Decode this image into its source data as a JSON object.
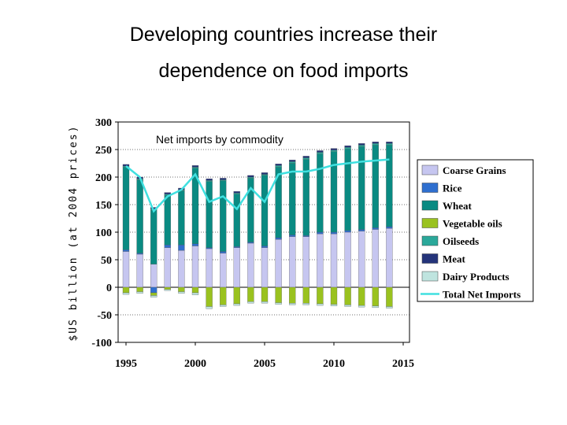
{
  "title_line1": "Developing countries increase their",
  "title_line2": "dependence on food imports",
  "chart_data": {
    "type": "bar",
    "stacked": true,
    "subtitle": "Net imports by commodity",
    "ylabel": "$US billion (at 2004 prices)",
    "xlabel": "",
    "ylim": [
      -100,
      300
    ],
    "yticks": [
      300,
      250,
      200,
      150,
      100,
      50,
      0,
      -50,
      -100
    ],
    "xticks": [
      "1995",
      "2000",
      "2005",
      "2010",
      "2015"
    ],
    "grid": true,
    "legend_position": "right",
    "categories": [
      1995,
      1996,
      1997,
      1998,
      1999,
      2000,
      2001,
      2002,
      2003,
      2004,
      2005,
      2006,
      2007,
      2008,
      2009,
      2010,
      2011,
      2012,
      2013,
      2014
    ],
    "series": [
      {
        "name": "Coarse Grains",
        "color": "#c6c6f0",
        "values": [
          65,
          60,
          42,
          72,
          67,
          75,
          70,
          62,
          72,
          80,
          72,
          87,
          92,
          92,
          97,
          97,
          100,
          102,
          105,
          107
        ]
      },
      {
        "name": "Rice",
        "color": "#2f6fcf",
        "values": [
          3,
          2,
          -10,
          5,
          10,
          4,
          2,
          3,
          2,
          2,
          3,
          3,
          3,
          2,
          3,
          3,
          3,
          3,
          3,
          3
        ]
      },
      {
        "name": "Wheat",
        "color": "#0a8a82",
        "values": [
          150,
          133,
          98,
          90,
          98,
          137,
          120,
          128,
          95,
          116,
          128,
          128,
          130,
          138,
          142,
          146,
          148,
          150,
          150,
          148
        ]
      },
      {
        "name": "Vegetable oils",
        "color": "#9ac21f",
        "values": [
          -10,
          -8,
          -5,
          -4,
          -8,
          -10,
          -35,
          -32,
          -30,
          -26,
          -26,
          -28,
          -29,
          -29,
          -30,
          -31,
          -32,
          -33,
          -34,
          -35
        ]
      },
      {
        "name": "Oilseeds",
        "color": "#2aa89a",
        "values": [
          2,
          2,
          2,
          2,
          2,
          2,
          2,
          2,
          2,
          2,
          2,
          3,
          3,
          3,
          3,
          3,
          3,
          3,
          3,
          3
        ]
      },
      {
        "name": "Meat",
        "color": "#24347a",
        "values": [
          3,
          3,
          3,
          3,
          3,
          3,
          3,
          3,
          3,
          3,
          3,
          3,
          3,
          3,
          3,
          3,
          3,
          3,
          3,
          3
        ]
      },
      {
        "name": "Dairy Products",
        "color": "#bfe4df",
        "values": [
          -3,
          -3,
          -3,
          -2,
          -3,
          -4,
          -4,
          -3,
          -3,
          -3,
          -3,
          -3,
          -3,
          -3,
          -3,
          -3,
          -3,
          -3,
          -3,
          -3
        ]
      }
    ],
    "line_series": {
      "name": "Total Net Imports",
      "color": "#40e0e0",
      "values": [
        220,
        200,
        138,
        165,
        177,
        205,
        155,
        165,
        142,
        180,
        155,
        205,
        210,
        210,
        215,
        222,
        225,
        228,
        230,
        232
      ]
    }
  }
}
